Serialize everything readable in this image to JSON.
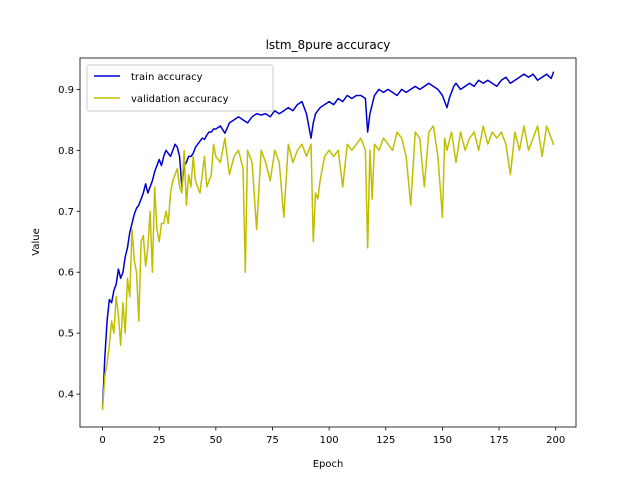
{
  "chart_data": {
    "type": "line",
    "title": "lstm_8pure accuracy",
    "xlabel": "Epoch",
    "ylabel": "Value",
    "xlim": [
      -9.95,
      208.95
    ],
    "ylim": [
      0.346,
      0.9515
    ],
    "xticks": [
      0,
      25,
      50,
      75,
      100,
      125,
      150,
      175,
      200
    ],
    "yticks": [
      0.4,
      0.5,
      0.6,
      0.7,
      0.8,
      0.9
    ],
    "grid": false,
    "legend_position": "top-left",
    "series": [
      {
        "name": "train accuracy",
        "color": "#0000cc",
        "x": [
          0,
          1,
          2,
          3,
          4,
          5,
          6,
          7,
          8,
          9,
          10,
          11,
          12,
          13,
          14,
          15,
          16,
          17,
          18,
          19,
          20,
          21,
          22,
          23,
          24,
          25,
          26,
          27,
          28,
          29,
          30,
          31,
          32,
          33,
          34,
          35,
          36,
          37,
          38,
          39,
          40,
          41,
          42,
          43,
          44,
          45,
          46,
          47,
          48,
          49,
          50,
          52,
          54,
          56,
          58,
          60,
          62,
          64,
          66,
          68,
          70,
          72,
          74,
          76,
          78,
          80,
          82,
          84,
          86,
          88,
          90,
          91,
          92,
          93,
          94,
          95,
          96,
          98,
          100,
          102,
          104,
          106,
          108,
          110,
          112,
          114,
          116,
          117,
          118,
          119,
          120,
          122,
          124,
          126,
          128,
          130,
          132,
          134,
          136,
          138,
          140,
          142,
          144,
          146,
          148,
          150,
          151,
          152,
          153,
          154,
          155,
          156,
          158,
          160,
          162,
          164,
          166,
          168,
          170,
          172,
          174,
          176,
          178,
          180,
          182,
          184,
          186,
          188,
          190,
          192,
          194,
          196,
          198,
          199
        ],
        "values": [
          0.378,
          0.46,
          0.52,
          0.555,
          0.55,
          0.57,
          0.58,
          0.605,
          0.59,
          0.6,
          0.625,
          0.64,
          0.665,
          0.68,
          0.695,
          0.705,
          0.71,
          0.72,
          0.73,
          0.745,
          0.73,
          0.74,
          0.75,
          0.765,
          0.775,
          0.785,
          0.775,
          0.79,
          0.8,
          0.795,
          0.79,
          0.8,
          0.81,
          0.805,
          0.79,
          0.74,
          0.775,
          0.78,
          0.79,
          0.79,
          0.795,
          0.805,
          0.81,
          0.815,
          0.82,
          0.818,
          0.825,
          0.83,
          0.83,
          0.835,
          0.835,
          0.84,
          0.828,
          0.845,
          0.85,
          0.855,
          0.85,
          0.845,
          0.855,
          0.86,
          0.858,
          0.86,
          0.855,
          0.865,
          0.86,
          0.865,
          0.87,
          0.865,
          0.875,
          0.88,
          0.86,
          0.84,
          0.82,
          0.845,
          0.86,
          0.865,
          0.87,
          0.875,
          0.88,
          0.875,
          0.885,
          0.88,
          0.89,
          0.885,
          0.89,
          0.89,
          0.885,
          0.83,
          0.86,
          0.875,
          0.89,
          0.9,
          0.895,
          0.9,
          0.895,
          0.89,
          0.9,
          0.895,
          0.9,
          0.905,
          0.9,
          0.905,
          0.91,
          0.905,
          0.9,
          0.89,
          0.88,
          0.87,
          0.885,
          0.895,
          0.905,
          0.91,
          0.9,
          0.905,
          0.91,
          0.905,
          0.915,
          0.91,
          0.915,
          0.91,
          0.905,
          0.915,
          0.92,
          0.91,
          0.915,
          0.92,
          0.925,
          0.92,
          0.925,
          0.915,
          0.92,
          0.925,
          0.918,
          0.928
        ]
      },
      {
        "name": "validation accuracy",
        "color": "#bfbf00",
        "x": [
          0,
          1,
          2,
          3,
          4,
          5,
          6,
          7,
          8,
          9,
          10,
          11,
          12,
          13,
          14,
          15,
          16,
          17,
          18,
          19,
          20,
          21,
          22,
          23,
          24,
          25,
          26,
          27,
          28,
          29,
          30,
          31,
          32,
          33,
          34,
          35,
          36,
          37,
          38,
          39,
          40,
          41,
          42,
          43,
          44,
          45,
          46,
          47,
          48,
          49,
          50,
          52,
          54,
          56,
          58,
          60,
          62,
          63,
          64,
          66,
          68,
          70,
          72,
          74,
          76,
          78,
          80,
          82,
          84,
          86,
          88,
          90,
          92,
          93,
          94,
          95,
          96,
          98,
          100,
          102,
          104,
          106,
          108,
          110,
          112,
          114,
          116,
          117,
          118,
          119,
          120,
          122,
          124,
          126,
          128,
          130,
          132,
          134,
          136,
          138,
          140,
          142,
          144,
          146,
          148,
          150,
          151,
          152,
          154,
          156,
          158,
          160,
          162,
          164,
          166,
          168,
          170,
          172,
          174,
          176,
          178,
          180,
          182,
          184,
          186,
          188,
          190,
          192,
          194,
          196,
          198,
          199
        ],
        "values": [
          0.375,
          0.43,
          0.45,
          0.48,
          0.52,
          0.5,
          0.56,
          0.53,
          0.48,
          0.55,
          0.5,
          0.59,
          0.56,
          0.67,
          0.62,
          0.6,
          0.52,
          0.65,
          0.66,
          0.61,
          0.64,
          0.7,
          0.6,
          0.74,
          0.67,
          0.65,
          0.68,
          0.68,
          0.7,
          0.68,
          0.73,
          0.75,
          0.76,
          0.77,
          0.74,
          0.73,
          0.8,
          0.71,
          0.76,
          0.74,
          0.79,
          0.75,
          0.74,
          0.73,
          0.76,
          0.79,
          0.74,
          0.75,
          0.76,
          0.81,
          0.79,
          0.78,
          0.82,
          0.76,
          0.79,
          0.8,
          0.77,
          0.6,
          0.8,
          0.78,
          0.67,
          0.8,
          0.78,
          0.75,
          0.8,
          0.78,
          0.69,
          0.81,
          0.78,
          0.8,
          0.81,
          0.79,
          0.81,
          0.65,
          0.73,
          0.72,
          0.75,
          0.79,
          0.8,
          0.79,
          0.8,
          0.74,
          0.81,
          0.8,
          0.81,
          0.82,
          0.8,
          0.64,
          0.8,
          0.72,
          0.81,
          0.8,
          0.82,
          0.81,
          0.8,
          0.83,
          0.82,
          0.79,
          0.71,
          0.83,
          0.82,
          0.74,
          0.83,
          0.84,
          0.79,
          0.69,
          0.82,
          0.8,
          0.83,
          0.78,
          0.83,
          0.8,
          0.82,
          0.83,
          0.8,
          0.84,
          0.81,
          0.83,
          0.82,
          0.83,
          0.81,
          0.76,
          0.83,
          0.8,
          0.84,
          0.8,
          0.82,
          0.84,
          0.79,
          0.84,
          0.82,
          0.81
        ]
      }
    ]
  }
}
